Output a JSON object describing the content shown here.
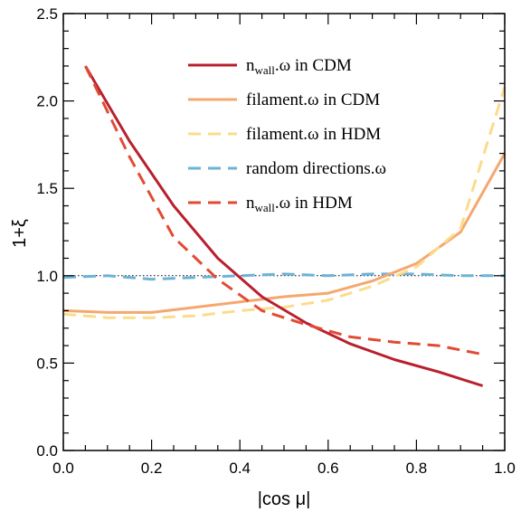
{
  "chart_data": {
    "type": "line",
    "title": "",
    "xlabel": "|cos μ|",
    "ylabel": "1+ξ",
    "xlim": [
      0.0,
      1.0
    ],
    "ylim": [
      0.0,
      2.5
    ],
    "xticks": [
      "0.0",
      "0.2",
      "0.4",
      "0.6",
      "0.8",
      "1.0"
    ],
    "yticks": [
      "0.0",
      "0.5",
      "1.0",
      "1.5",
      "2.0",
      "2.5"
    ],
    "reference_line": {
      "y": 1.0,
      "style": "dotted"
    },
    "legend_position": "top-right",
    "series": [
      {
        "name_main": "n",
        "name_sub": "wall",
        "name_rest": ".ω in CDM",
        "color": "#b8202e",
        "dash": "solid",
        "x": [
          0.05,
          0.15,
          0.25,
          0.35,
          0.45,
          0.55,
          0.65,
          0.75,
          0.85,
          0.95
        ],
        "y": [
          2.2,
          1.77,
          1.4,
          1.1,
          0.88,
          0.73,
          0.61,
          0.52,
          0.45,
          0.37
        ]
      },
      {
        "name_main": "filament.ω in CDM",
        "name_sub": "",
        "name_rest": "",
        "color": "#f4a870",
        "dash": "solid",
        "x": [
          0.0,
          0.1,
          0.2,
          0.3,
          0.4,
          0.5,
          0.6,
          0.7,
          0.8,
          0.9,
          1.0
        ],
        "y": [
          0.8,
          0.79,
          0.79,
          0.82,
          0.85,
          0.88,
          0.9,
          0.97,
          1.07,
          1.25,
          1.7
        ]
      },
      {
        "name_main": "filament.ω in HDM",
        "name_sub": "",
        "name_rest": "",
        "color": "#fbdc8c",
        "dash": "dashed",
        "x": [
          0.0,
          0.1,
          0.2,
          0.3,
          0.4,
          0.5,
          0.6,
          0.7,
          0.8,
          0.9,
          1.0
        ],
        "y": [
          0.78,
          0.76,
          0.76,
          0.77,
          0.8,
          0.82,
          0.86,
          0.94,
          1.05,
          1.27,
          2.08
        ]
      },
      {
        "name_main": "random directions.ω",
        "name_sub": "",
        "name_rest": "",
        "color": "#6eb2d6",
        "dash": "dashed",
        "x": [
          0.0,
          0.1,
          0.2,
          0.3,
          0.4,
          0.5,
          0.6,
          0.7,
          0.8,
          0.9,
          1.0
        ],
        "y": [
          0.99,
          1.0,
          0.98,
          0.99,
          1.0,
          1.01,
          1.0,
          1.01,
          1.01,
          1.0,
          1.0
        ]
      },
      {
        "name_main": "n",
        "name_sub": "wall",
        "name_rest": ".ω in HDM",
        "color": "#e24a33",
        "dash": "dashed",
        "x": [
          0.05,
          0.15,
          0.25,
          0.35,
          0.45,
          0.55,
          0.65,
          0.75,
          0.85,
          0.95
        ],
        "y": [
          2.2,
          1.68,
          1.22,
          0.98,
          0.8,
          0.72,
          0.65,
          0.62,
          0.6,
          0.55
        ]
      }
    ]
  }
}
